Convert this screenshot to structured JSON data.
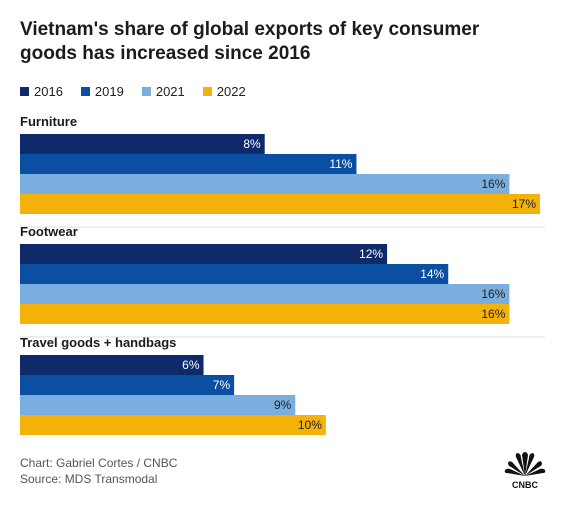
{
  "chart_data": {
    "type": "bar",
    "orientation": "horizontal",
    "title": "Vietnam's share of global exports of key consumer goods has increased since 2016",
    "categories": [
      "Furniture",
      "Footwear",
      "Travel goods + handbags"
    ],
    "series": [
      {
        "name": "2016",
        "color": "#0f2a6b",
        "values": [
          8,
          12,
          6
        ],
        "labels": [
          "8%",
          "12%",
          "6%"
        ]
      },
      {
        "name": "2019",
        "color": "#0b4fa2",
        "values": [
          11,
          14,
          7
        ],
        "labels": [
          "11%",
          "14%",
          "7%"
        ]
      },
      {
        "name": "2021",
        "color": "#7aaedf",
        "values": [
          16,
          16,
          9
        ],
        "labels": [
          "16%",
          "16%",
          "9%"
        ]
      },
      {
        "name": "2022",
        "color": "#f5b20a",
        "values": [
          17,
          16,
          10
        ],
        "labels": [
          "17%",
          "16%",
          "10%"
        ]
      }
    ],
    "value_suffix": "%",
    "xlim": [
      0,
      17
    ],
    "grid": false,
    "legend_position": "top-left"
  },
  "footer": {
    "credit": "Chart: Gabriel Cortes / CNBC",
    "source": "Source: MDS Transmodal"
  },
  "logo": {
    "text": "CNBC",
    "icon": "nbc-peacock-icon"
  }
}
